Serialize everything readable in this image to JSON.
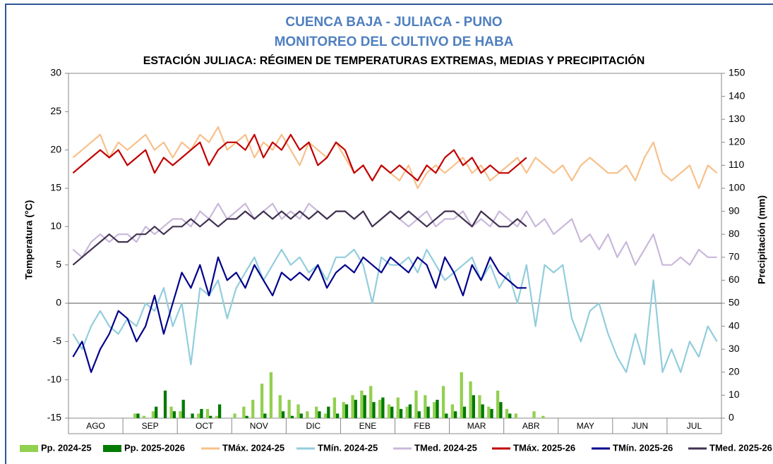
{
  "chart_data": {
    "type": "line",
    "title": "CUENCA BAJA - JULIACA - PUNO",
    "subtitle": "MONITOREO DEL CULTIVO DE HABA",
    "subtitle2": "ESTACIÓN JULIACA: RÉGIMEN DE TEMPERATURAS EXTREMAS, MEDIAS Y PRECIPITACIÓN",
    "ylabel": "Temperatura (°C)",
    "y2label": "Precipitación (mm)",
    "categories": [
      null,
      null,
      "AGO",
      null,
      null,
      null,
      null,
      null,
      "SEP",
      null,
      null,
      null,
      null,
      null,
      "OCT",
      null,
      null,
      null,
      null,
      null,
      "NOV",
      null,
      null,
      null,
      null,
      null,
      "DIC",
      null,
      null,
      null,
      null,
      null,
      "ENE",
      null,
      null,
      null,
      null,
      null,
      "FEB",
      null,
      null,
      null,
      null,
      null,
      "MAR",
      null,
      null,
      null,
      null,
      null,
      "ABR",
      null,
      null,
      null,
      null,
      null,
      "MAY",
      null,
      null,
      null,
      null,
      null,
      "JUN",
      null,
      null,
      null,
      null,
      null,
      "JUL",
      null,
      null,
      null
    ],
    "ylim": [
      -15,
      30
    ],
    "yticks": [
      -15,
      -10,
      -5,
      0,
      5,
      10,
      15,
      20,
      25,
      30
    ],
    "y2lim": [
      0,
      150
    ],
    "y2ticks": [
      0,
      10,
      20,
      30,
      40,
      50,
      60,
      70,
      80,
      90,
      100,
      110,
      120,
      130,
      140,
      150
    ],
    "series": [
      {
        "name": "Pp. 2024-25",
        "kind": "bar",
        "axis": "y2",
        "color": "#92d050",
        "values": [
          0,
          0,
          0,
          0,
          0,
          0,
          0,
          2,
          1,
          3,
          0,
          5,
          3,
          0,
          2,
          4,
          1,
          0,
          2,
          5,
          8,
          15,
          20,
          10,
          8,
          6,
          3,
          5,
          2,
          9,
          7,
          10,
          12,
          14,
          8,
          6,
          9,
          5,
          12,
          10,
          7,
          14,
          6,
          20,
          16,
          10,
          5,
          12,
          4,
          2,
          0,
          3,
          1,
          0,
          0,
          0,
          0,
          0,
          0,
          0,
          0,
          0,
          0,
          0,
          0,
          0,
          0,
          0,
          0,
          0,
          0,
          0
        ]
      },
      {
        "name": "Pp. 2025-2026",
        "kind": "bar",
        "axis": "y2",
        "color": "#007a00",
        "values": [
          0,
          0,
          0,
          0,
          0,
          0,
          0,
          2,
          0,
          5,
          12,
          3,
          8,
          2,
          4,
          1,
          6,
          0,
          0,
          1,
          0,
          2,
          0,
          3,
          1,
          2,
          0,
          3,
          5,
          2,
          6,
          8,
          10,
          7,
          9,
          5,
          4,
          6,
          3,
          5,
          8,
          2,
          3,
          5,
          10,
          6,
          4,
          7,
          2,
          0,
          0,
          null,
          null,
          null,
          null,
          null,
          null,
          null,
          null,
          null,
          null,
          null,
          null,
          null,
          null,
          null,
          null,
          null,
          null,
          null,
          null,
          null
        ]
      },
      {
        "name": "TMáx. 2024-25",
        "color": "#f7c08a",
        "values": [
          19,
          20,
          21,
          22,
          19,
          21,
          20,
          21,
          22,
          20,
          21,
          19,
          21,
          20,
          22,
          21,
          23,
          20,
          21,
          22,
          19,
          21,
          20,
          22,
          20,
          18,
          21,
          20,
          19,
          21,
          19,
          17,
          18,
          16,
          18,
          17,
          16,
          18,
          15,
          17,
          18,
          17,
          18,
          19,
          17,
          18,
          16,
          17,
          18,
          19,
          17,
          19,
          18,
          17,
          18,
          16,
          18,
          19,
          18,
          17,
          17,
          18,
          16,
          19,
          21,
          17,
          16,
          17,
          18,
          15,
          18,
          17
        ]
      },
      {
        "name": "TMín. 2024-25",
        "color": "#92cddc",
        "values": [
          -4,
          -6,
          -3,
          -1,
          -3,
          -4,
          -2,
          -3,
          0,
          -1,
          2,
          -3,
          0,
          -8,
          2,
          1,
          3,
          -2,
          2,
          4,
          6,
          3,
          5,
          7,
          5,
          6,
          4,
          5,
          3,
          6,
          6,
          7,
          5,
          0,
          6,
          5,
          5,
          6,
          4,
          7,
          5,
          3,
          4,
          5,
          6,
          3,
          5,
          2,
          4,
          0,
          5,
          -3,
          5,
          4,
          5,
          -2,
          -5,
          -1,
          0,
          -4,
          -7,
          -9,
          -4,
          -8,
          3,
          -9,
          -6,
          -9,
          -5,
          -7,
          -3,
          -5
        ]
      },
      {
        "name": "TMed. 2024-25",
        "color": "#c9b8da",
        "values": [
          7,
          6,
          8,
          9,
          8,
          9,
          9,
          8,
          10,
          9,
          10,
          11,
          11,
          10,
          12,
          11,
          13,
          11,
          12,
          13,
          11,
          12,
          13,
          11,
          12,
          11,
          13,
          12,
          11,
          12,
          12,
          11,
          12,
          10,
          11,
          12,
          11,
          10,
          11,
          12,
          10,
          11,
          11,
          12,
          10,
          11,
          10,
          12,
          11,
          10,
          12,
          10,
          11,
          9,
          10,
          11,
          8,
          9,
          7,
          9,
          6,
          8,
          5,
          7,
          9,
          5,
          5,
          6,
          5,
          7,
          6,
          6
        ]
      },
      {
        "name": "TMáx. 2025-26",
        "color": "#c00000",
        "values": [
          17,
          18,
          19,
          20,
          19,
          20,
          18,
          19,
          20,
          17,
          19,
          18,
          19,
          20,
          21,
          18,
          20,
          21,
          21,
          20,
          22,
          19,
          21,
          20,
          22,
          20,
          21,
          18,
          19,
          21,
          20,
          17,
          18,
          16,
          18,
          17,
          18,
          17,
          16,
          18,
          17,
          19,
          20,
          18,
          19,
          17,
          18,
          17,
          17,
          18,
          19,
          null,
          null,
          null,
          null,
          null,
          null,
          null,
          null,
          null,
          null,
          null,
          null,
          null,
          null,
          null,
          null,
          null,
          null,
          null,
          null,
          null
        ]
      },
      {
        "name": "TMín. 2025-26",
        "color": "#00008b",
        "values": [
          -7,
          -5,
          -9,
          -6,
          -4,
          -1,
          -2,
          -5,
          -3,
          1,
          -4,
          0,
          4,
          2,
          5,
          1,
          6,
          3,
          4,
          2,
          5,
          3,
          1,
          4,
          3,
          4,
          3,
          5,
          2,
          4,
          5,
          4,
          6,
          5,
          4,
          6,
          5,
          4,
          6,
          5,
          2,
          6,
          4,
          1,
          5,
          3,
          6,
          4,
          3,
          2,
          2,
          null,
          null,
          null,
          null,
          null,
          null,
          null,
          null,
          null,
          null,
          null,
          null,
          null,
          null,
          null,
          null,
          null,
          null,
          null,
          null,
          null
        ]
      },
      {
        "name": "TMed. 2025-26",
        "color": "#403151",
        "values": [
          5,
          6,
          7,
          8,
          9,
          8,
          8,
          9,
          9,
          10,
          9,
          10,
          10,
          11,
          10,
          11,
          10,
          11,
          11,
          12,
          11,
          12,
          11,
          12,
          11,
          12,
          11,
          12,
          11,
          12,
          12,
          11,
          12,
          10,
          11,
          12,
          11,
          12,
          11,
          10,
          11,
          12,
          12,
          11,
          10,
          12,
          11,
          10,
          10,
          11,
          10,
          null,
          null,
          null,
          null,
          null,
          null,
          null,
          null,
          null,
          null,
          null,
          null,
          null,
          null,
          null,
          null,
          null,
          null,
          null,
          null,
          null
        ]
      }
    ]
  }
}
